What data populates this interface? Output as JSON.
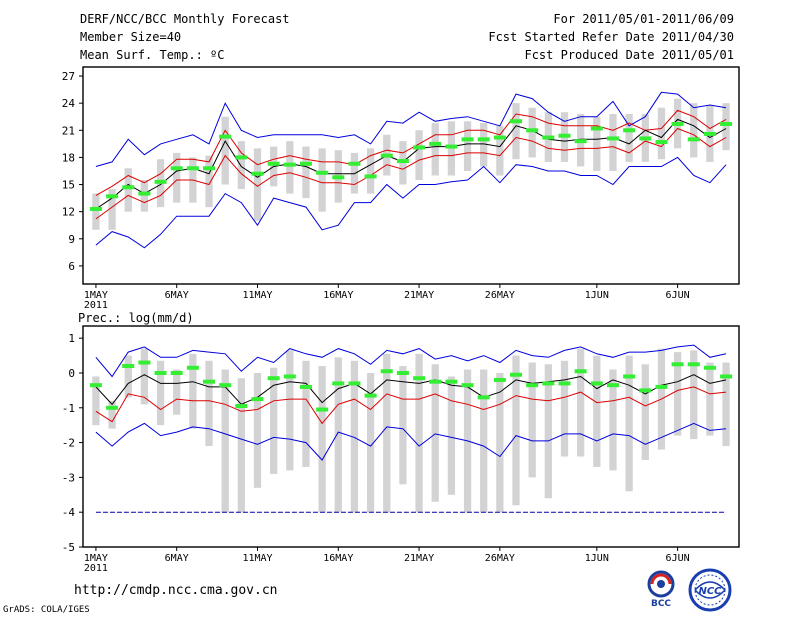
{
  "header": {
    "title": "DERF/NCC/BCC Monthly Forecast",
    "member_size": "Member Size=40",
    "variable": "Mean Surf. Temp.: ºC",
    "period": "For 2011/05/01-2011/06/09",
    "start_date": "Fcst Started Refer Date 2011/04/30",
    "produced_date": "Fcst Produced Date 2011/05/01"
  },
  "footer": {
    "url": "http://cmdp.ncc.cma.gov.cn",
    "credit": "GrADS: COLA/IGES",
    "logo_bcc": "BCC",
    "logo_ncc": "NCC"
  },
  "colors": {
    "box": "#d3d3d5",
    "envelope": "#0000dd",
    "spread": "#dd0000",
    "mean": "#000000",
    "median": "#33ee33",
    "refline": "#0000aa"
  },
  "chart_data": [
    {
      "type": "line",
      "title": "Mean Surf. Temp.: ºC",
      "x_ticks": [
        {
          "day": 1,
          "label": "1MAY",
          "label2": "2011"
        },
        {
          "day": 6,
          "label": "6MAY"
        },
        {
          "day": 11,
          "label": "11MAY"
        },
        {
          "day": 16,
          "label": "16MAY"
        },
        {
          "day": 21,
          "label": "21MAY"
        },
        {
          "day": 26,
          "label": "26MAY"
        },
        {
          "day": 32,
          "label": "1JUN"
        },
        {
          "day": 37,
          "label": "6JUN"
        }
      ],
      "xlim": [
        0.2,
        40.8
      ],
      "ylim": [
        4,
        28
      ],
      "y_ticks": [
        6,
        9,
        12,
        15,
        18,
        21,
        24,
        27
      ],
      "days": [
        1,
        2,
        3,
        4,
        5,
        6,
        7,
        8,
        9,
        10,
        11,
        12,
        13,
        14,
        15,
        16,
        17,
        18,
        19,
        20,
        21,
        22,
        23,
        24,
        25,
        26,
        27,
        28,
        29,
        30,
        31,
        32,
        33,
        34,
        35,
        36,
        37,
        38,
        39,
        40
      ],
      "series": [
        {
          "name": "max",
          "values": [
            17,
            17.5,
            20,
            18.3,
            19.5,
            20,
            20.5,
            19.5,
            24,
            21,
            20.2,
            20.5,
            20.5,
            20.5,
            20.5,
            20.2,
            20.5,
            19.5,
            22,
            21.8,
            23,
            22,
            22.3,
            22.5,
            22,
            21.5,
            25,
            24.5,
            23,
            22,
            22.5,
            22.5,
            24.2,
            21.5,
            22.5,
            25.2,
            25,
            23.5,
            23.8,
            23.5
          ]
        },
        {
          "name": "p75",
          "values": [
            13.8,
            14.8,
            16,
            15.2,
            16.2,
            17.8,
            17.8,
            17.5,
            21,
            18.5,
            17.2,
            17.8,
            18.2,
            17.8,
            17.5,
            17.5,
            17.2,
            18.2,
            18.8,
            18.5,
            19.5,
            20.5,
            20.5,
            21,
            21,
            20.5,
            22.8,
            22.5,
            21.8,
            21.5,
            21.5,
            21.5,
            21,
            21.8,
            21,
            21.2,
            23.2,
            22.5,
            21.2,
            22.2
          ]
        },
        {
          "name": "mean",
          "values": [
            12.3,
            13.5,
            15,
            14,
            15,
            16.5,
            16.8,
            16.2,
            19.8,
            17,
            15.8,
            17,
            17.3,
            17,
            16.2,
            16.2,
            16.2,
            17.2,
            18.2,
            17.5,
            19,
            19.2,
            19.2,
            19.5,
            19.5,
            19.2,
            21.5,
            21,
            20,
            19.8,
            20,
            20,
            20.2,
            19.5,
            21,
            20.2,
            22.2,
            21.5,
            20.2,
            21.2
          ]
        },
        {
          "name": "p25",
          "values": [
            11.2,
            12.5,
            13.8,
            13,
            13.8,
            15.5,
            15.5,
            15,
            18.2,
            16.2,
            14.8,
            16,
            16.3,
            15.8,
            15.2,
            15.2,
            15,
            16,
            17.2,
            16.7,
            17.7,
            18.2,
            18.2,
            18.5,
            18.5,
            18.2,
            20.2,
            19.8,
            19,
            18.8,
            19,
            19,
            19.2,
            18.5,
            19.8,
            19.2,
            21.2,
            20.5,
            19.2,
            20.2
          ]
        },
        {
          "name": "min",
          "values": [
            8.3,
            9.8,
            9.2,
            8,
            9.5,
            11.5,
            11.5,
            11.5,
            14,
            13,
            10.5,
            13.5,
            13,
            12.5,
            10,
            10.5,
            13,
            13,
            15,
            13.5,
            15,
            15,
            15.3,
            15.5,
            17,
            15.2,
            17.2,
            17,
            16.5,
            16.5,
            16,
            16,
            15,
            17,
            17,
            17,
            18,
            16,
            15.2,
            17.2
          ]
        }
      ],
      "boxes": {
        "low": [
          10,
          10,
          12,
          12,
          12.5,
          13,
          13,
          12.5,
          15,
          14.5,
          11,
          14.8,
          14,
          13.5,
          12,
          13,
          14,
          14,
          16,
          15,
          15.5,
          16,
          16,
          16.5,
          17,
          16,
          17.8,
          18,
          17.5,
          17.5,
          17,
          16.5,
          16.5,
          17.5,
          17.5,
          17.8,
          19,
          18,
          17.5,
          18.8
        ],
        "high": [
          14,
          14.5,
          16.8,
          15.5,
          17.8,
          18.5,
          18,
          18.2,
          22.5,
          19.8,
          19,
          19.2,
          19.8,
          19.2,
          19,
          18.8,
          18.5,
          19,
          20.5,
          19.8,
          21,
          21.8,
          22,
          22,
          21.8,
          21.5,
          24,
          23.5,
          23,
          23,
          22.8,
          22.5,
          22.8,
          22.8,
          22.8,
          23.5,
          24.5,
          24,
          23.8,
          24
        ],
        "median": [
          12.3,
          13.7,
          14.7,
          14,
          15.3,
          16.8,
          16.8,
          16.8,
          20.3,
          18,
          16.2,
          17.3,
          17.2,
          17.3,
          16.3,
          15.8,
          17.3,
          15.9,
          18.2,
          17.6,
          19.1,
          19.5,
          19.2,
          20,
          20,
          20.2,
          22,
          21,
          20.2,
          20.4,
          19.8,
          21.2,
          20.1,
          21,
          20.1,
          19.7,
          21.7,
          20,
          20.6,
          21.7
        ]
      }
    },
    {
      "type": "line",
      "title": "Prec.: log(mm/d)",
      "x_ticks": [
        {
          "day": 1,
          "label": "1MAY",
          "label2": "2011"
        },
        {
          "day": 6,
          "label": "6MAY"
        },
        {
          "day": 11,
          "label": "11MAY"
        },
        {
          "day": 16,
          "label": "16MAY"
        },
        {
          "day": 21,
          "label": "21MAY"
        },
        {
          "day": 26,
          "label": "26MAY"
        },
        {
          "day": 32,
          "label": "1JUN"
        },
        {
          "day": 37,
          "label": "6JUN"
        }
      ],
      "xlim": [
        0.2,
        40.8
      ],
      "ylim": [
        -5,
        1.35
      ],
      "y_ticks": [
        -5,
        -4,
        -3,
        -2,
        -1,
        0,
        1
      ],
      "reference_line": -4,
      "series": [
        {
          "name": "max",
          "values": [
            0.45,
            -0.1,
            0.6,
            0.75,
            0.45,
            0.45,
            0.65,
            0.6,
            0.55,
            0.05,
            0.45,
            0.3,
            0.7,
            0.55,
            0.45,
            0.7,
            0.55,
            0.25,
            0.65,
            0.55,
            0.7,
            0.4,
            0.5,
            0.35,
            0.5,
            0.3,
            0.65,
            0.5,
            0.45,
            0.65,
            0.75,
            0.55,
            0.45,
            0.6,
            0.6,
            0.65,
            0.75,
            0.8,
            0.45,
            0.55
          ]
        },
        {
          "name": "mean",
          "values": [
            -0.4,
            -0.9,
            -0.3,
            -0.05,
            -0.3,
            -0.3,
            -0.25,
            -0.4,
            -0.4,
            -0.9,
            -0.7,
            -0.35,
            -0.25,
            -0.3,
            -0.85,
            -0.45,
            -0.3,
            -0.6,
            -0.2,
            -0.25,
            -0.3,
            -0.2,
            -0.35,
            -0.4,
            -0.7,
            -0.55,
            -0.2,
            -0.3,
            -0.25,
            -0.2,
            -0.1,
            -0.45,
            -0.2,
            -0.35,
            -0.6,
            -0.35,
            -0.25,
            -0.05,
            -0.3,
            -0.2
          ]
        },
        {
          "name": "p25",
          "values": [
            -1.1,
            -1.4,
            -0.6,
            -0.7,
            -1.05,
            -0.75,
            -0.8,
            -0.8,
            -0.9,
            -1.1,
            -1.05,
            -0.8,
            -0.75,
            -0.75,
            -1.45,
            -0.9,
            -0.75,
            -1.05,
            -0.6,
            -0.75,
            -0.75,
            -0.6,
            -0.8,
            -0.9,
            -1.05,
            -0.9,
            -0.65,
            -0.75,
            -0.8,
            -0.7,
            -0.55,
            -0.85,
            -0.8,
            -0.7,
            -0.95,
            -0.75,
            -0.5,
            -0.4,
            -0.6,
            -0.55
          ]
        },
        {
          "name": "min",
          "values": [
            -1.7,
            -2.1,
            -1.7,
            -1.45,
            -1.8,
            -1.7,
            -1.55,
            -1.6,
            -1.75,
            -1.9,
            -2.05,
            -1.85,
            -1.9,
            -2,
            -2.5,
            -1.7,
            -1.85,
            -2.1,
            -1.55,
            -1.6,
            -2.1,
            -1.75,
            -1.85,
            -1.95,
            -2.1,
            -2.4,
            -1.8,
            -1.95,
            -1.95,
            -1.75,
            -1.75,
            -1.95,
            -1.75,
            -1.8,
            -2.05,
            -1.85,
            -1.65,
            -1.45,
            -1.65,
            -1.6
          ]
        }
      ],
      "boxes": {
        "low": [
          -1.5,
          -1.6,
          -0.7,
          -0.9,
          -1.5,
          -1.2,
          -1.6,
          -2.1,
          -4,
          -4,
          -3.3,
          -2.9,
          -2.8,
          -2.7,
          -4,
          -4,
          -4,
          -4,
          -4,
          -3.2,
          -4,
          -3.7,
          -3.5,
          -4,
          -4,
          -4,
          -3.8,
          -3,
          -3.6,
          -2.4,
          -2.4,
          -2.7,
          -2.8,
          -3.4,
          -2.5,
          -2.2,
          -1.8,
          -1.9,
          -1.8,
          -2.1
        ],
        "high": [
          -0.1,
          -0.8,
          0.5,
          0.7,
          0.35,
          0.1,
          0.55,
          0.35,
          0.1,
          -0.15,
          0,
          0.15,
          0.65,
          0.35,
          0.2,
          0.45,
          0.35,
          0,
          0.55,
          0.2,
          0.55,
          0.25,
          -0.1,
          0.1,
          0.1,
          0,
          0.5,
          0.3,
          0.25,
          0.35,
          0.7,
          0.5,
          0.1,
          0.5,
          0.25,
          0.7,
          0.6,
          0.65,
          0.3,
          0.3
        ],
        "median": [
          -0.35,
          -1,
          0.2,
          0.3,
          0,
          0,
          0.15,
          -0.25,
          -0.35,
          -0.95,
          -0.75,
          -0.15,
          -0.1,
          -0.4,
          -1.05,
          -0.3,
          -0.3,
          -0.65,
          0.05,
          0,
          -0.15,
          -0.25,
          -0.25,
          -0.35,
          -0.7,
          -0.2,
          -0.05,
          -0.35,
          -0.3,
          -0.3,
          0.05,
          -0.3,
          -0.35,
          -0.1,
          -0.5,
          -0.4,
          0.25,
          0.25,
          0.15,
          -0.1
        ]
      }
    }
  ]
}
